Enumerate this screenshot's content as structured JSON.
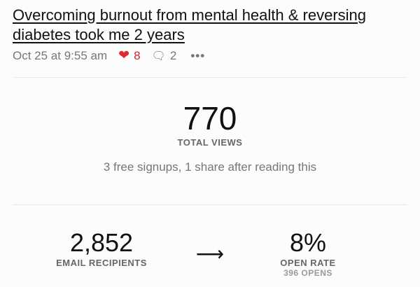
{
  "post": {
    "title": "Overcoming burnout from mental health & reversing diabetes took me 2 years",
    "date": "Oct 25 at 9:55 am",
    "likes": "8",
    "comments": "2",
    "more": "•••"
  },
  "colors": {
    "heart": "#e0282e"
  },
  "views": {
    "value": "770",
    "label": "TOTAL VIEWS",
    "detail": "3 free signups, 1 share after reading this"
  },
  "email": {
    "recipients": "2,852",
    "recipients_label": "EMAIL RECIPIENTS",
    "arrow": "⟶",
    "open_rate": "8%",
    "open_rate_label": "OPEN RATE",
    "opens": "396 OPENS"
  }
}
